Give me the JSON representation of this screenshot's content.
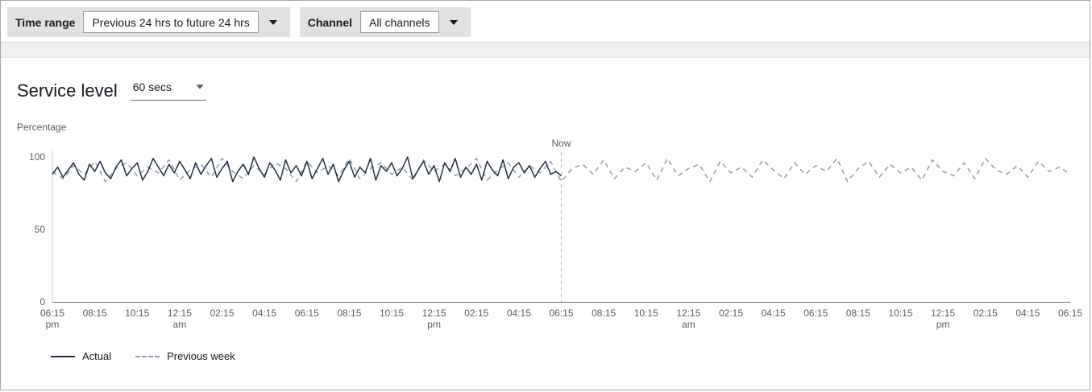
{
  "filters": {
    "time_range": {
      "label": "Time range",
      "value": "Previous 24 hrs to future 24 hrs"
    },
    "channel": {
      "label": "Channel",
      "value": "All channels"
    }
  },
  "panel": {
    "title": "Service level",
    "interval_value": "60 secs"
  },
  "legend": [
    {
      "label": "Actual",
      "color": "#232f3e",
      "style": "solid"
    },
    {
      "label": "Previous week",
      "color": "#8d9aa8",
      "style": "dashed"
    }
  ],
  "chart_data": {
    "type": "line",
    "title": "Service level",
    "xlabel": "",
    "ylabel": "Percentage",
    "ylim": [
      0,
      100
    ],
    "y_ticks": [
      0,
      50,
      100
    ],
    "grid": false,
    "legend_position": "bottom-left",
    "now_label": "Now",
    "now_index": 12,
    "x_ticks": [
      {
        "t": "06:15",
        "sub": "pm"
      },
      {
        "t": "08:15"
      },
      {
        "t": "10:15"
      },
      {
        "t": "12:15",
        "sub": "am"
      },
      {
        "t": "02:15"
      },
      {
        "t": "04:15"
      },
      {
        "t": "06:15"
      },
      {
        "t": "08:15"
      },
      {
        "t": "10:15"
      },
      {
        "t": "12:15",
        "sub": "pm"
      },
      {
        "t": "02:15"
      },
      {
        "t": "04:15"
      },
      {
        "t": "06:15"
      },
      {
        "t": "08:15"
      },
      {
        "t": "10:15"
      },
      {
        "t": "12:15",
        "sub": "am"
      },
      {
        "t": "02:15"
      },
      {
        "t": "04:15"
      },
      {
        "t": "06:15"
      },
      {
        "t": "08:15"
      },
      {
        "t": "10:15"
      },
      {
        "t": "12:15",
        "sub": "pm"
      },
      {
        "t": "02:15"
      },
      {
        "t": "04:15"
      },
      {
        "t": "06:15"
      }
    ],
    "series": [
      {
        "name": "Actual",
        "color": "#232f3e",
        "dash": false,
        "start_frac": 0,
        "end_frac": 0.5,
        "values": [
          88,
          93,
          86,
          91,
          96,
          88,
          84,
          95,
          90,
          97,
          89,
          85,
          93,
          98,
          87,
          92,
          96,
          84,
          90,
          99,
          93,
          87,
          95,
          89,
          97,
          91,
          85,
          96,
          88,
          94,
          99,
          86,
          92,
          97,
          83,
          90,
          95,
          88,
          100,
          92,
          86,
          96,
          91,
          84,
          98,
          89,
          94,
          87,
          97,
          85,
          92,
          99,
          88,
          95,
          83,
          91,
          97,
          86,
          93,
          89,
          99,
          84,
          94,
          90,
          96,
          87,
          92,
          100,
          85,
          91,
          97,
          88,
          94,
          83,
          96,
          90,
          99,
          86,
          93,
          88,
          95,
          84,
          97,
          91,
          87,
          98,
          85,
          93,
          96,
          89,
          94,
          86,
          92,
          97,
          88,
          90,
          87
        ]
      },
      {
        "name": "Previous week",
        "color": "#8d9aa8",
        "dash": true,
        "start_frac": 0,
        "end_frac": 1,
        "values": [
          90,
          85,
          94,
          88,
          97,
          83,
          92,
          96,
          87,
          93,
          89,
          98,
          84,
          91,
          95,
          86,
          99,
          90,
          85,
          94,
          88,
          96,
          92,
          83,
          97,
          89,
          94,
          87,
          99,
          85,
          92,
          96,
          88,
          93,
          84,
          98,
          90,
          95,
          87,
          92,
          99,
          84,
          91,
          96,
          86,
          94,
          89,
          97,
          83,
          92,
          95,
          88,
          98,
          85,
          93,
          90,
          96,
          84,
          99,
          87,
          92,
          95,
          83,
          97,
          89,
          93,
          86,
          98,
          91,
          85,
          96,
          88,
          94,
          90,
          99,
          83,
          92,
          97,
          86,
          95,
          89,
          93,
          84,
          98,
          90,
          87,
          96,
          85,
          99,
          91,
          88,
          94,
          86,
          97,
          90,
          93,
          88
        ]
      }
    ]
  }
}
